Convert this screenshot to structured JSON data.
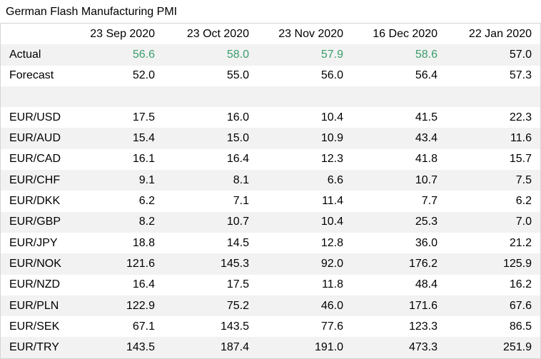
{
  "title": "German Flash Manufacturing PMI",
  "colors": {
    "beat": "#3a9d6b",
    "stripe": "#f2f2f2"
  },
  "chart_data": {
    "type": "table",
    "columns": [
      "23 Sep 2020",
      "23 Oct 2020",
      "23 Nov 2020",
      "16 Dec 2020",
      "22 Jan 2020"
    ],
    "rows": [
      {
        "label": "Actual",
        "values": [
          "56.6",
          "58.0",
          "57.9",
          "58.6",
          "57.0"
        ],
        "highlight": [
          true,
          true,
          true,
          true,
          false
        ]
      },
      {
        "label": "Forecast",
        "values": [
          "52.0",
          "55.0",
          "56.0",
          "56.4",
          "57.3"
        ]
      },
      {
        "label": "",
        "values": [
          "",
          "",
          "",
          "",
          ""
        ]
      },
      {
        "label": "EUR/USD",
        "values": [
          "17.5",
          "16.0",
          "10.4",
          "41.5",
          "22.3"
        ]
      },
      {
        "label": "EUR/AUD",
        "values": [
          "15.4",
          "15.0",
          "10.9",
          "43.4",
          "11.6"
        ]
      },
      {
        "label": "EUR/CAD",
        "values": [
          "16.1",
          "16.4",
          "12.3",
          "41.8",
          "15.7"
        ]
      },
      {
        "label": "EUR/CHF",
        "values": [
          "9.1",
          "8.1",
          "6.6",
          "10.7",
          "7.5"
        ]
      },
      {
        "label": "EUR/DKK",
        "values": [
          "6.2",
          "7.1",
          "11.4",
          "7.7",
          "6.2"
        ]
      },
      {
        "label": "EUR/GBP",
        "values": [
          "8.2",
          "10.7",
          "10.4",
          "25.3",
          "7.0"
        ]
      },
      {
        "label": "EUR/JPY",
        "values": [
          "18.8",
          "14.5",
          "12.8",
          "36.0",
          "21.2"
        ]
      },
      {
        "label": "EUR/NOK",
        "values": [
          "121.6",
          "145.3",
          "92.0",
          "176.2",
          "125.9"
        ]
      },
      {
        "label": "EUR/NZD",
        "values": [
          "16.4",
          "17.5",
          "11.8",
          "48.4",
          "16.2"
        ]
      },
      {
        "label": "EUR/PLN",
        "values": [
          "122.9",
          "75.2",
          "46.0",
          "171.6",
          "67.6"
        ]
      },
      {
        "label": "EUR/SEK",
        "values": [
          "67.1",
          "143.5",
          "77.6",
          "123.3",
          "86.5"
        ]
      },
      {
        "label": "EUR/TRY",
        "values": [
          "143.5",
          "187.4",
          "191.0",
          "473.3",
          "251.9"
        ]
      }
    ]
  }
}
